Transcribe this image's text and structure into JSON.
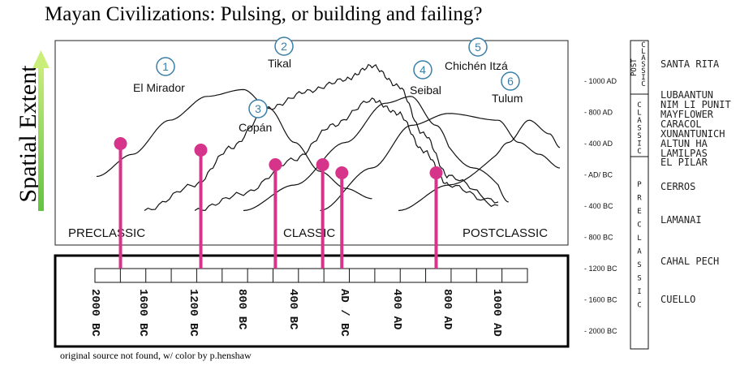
{
  "title": "Mayan Civilizations: Pulsing, or building and failing?",
  "y_axis_label": "Spatial Extent",
  "caption": "original source not found, w/ color by p.henshaw",
  "colors": {
    "marker": "#d6338a",
    "arrow_top": "#c9ee7a",
    "arrow_bottom": "#62c43f",
    "circle": "#3a7fa8",
    "curve": "#111111"
  },
  "chart_data": {
    "type": "line",
    "title": "Mayan Civilizations: Pulsing, or building and failing?",
    "ylabel": "Spatial Extent",
    "xlabel": "",
    "x_ticks": [
      "2000 BC",
      "1600 BC",
      "1200 BC",
      "800 BC",
      "400 BC",
      "AD / BC",
      "400 AD",
      "800 AD",
      "1000 AD"
    ],
    "x_tick_values": [
      -2000,
      -1600,
      -1200,
      -800,
      -400,
      0,
      400,
      800,
      1000
    ],
    "xlim": [
      -2000,
      1600
    ],
    "eras": [
      "PRECLASSIC",
      "CLASSIC",
      "POSTCLASSIC"
    ],
    "series": [
      {
        "name": "El Mirador",
        "number": "1",
        "x": [
          -2000,
          -1700,
          -1400,
          -1100,
          -800,
          -600,
          -400,
          -200,
          0,
          200
        ],
        "y": [
          0.25,
          0.38,
          0.58,
          0.72,
          0.76,
          0.65,
          0.45,
          0.28,
          0.18,
          0.12
        ]
      },
      {
        "name": "Tikal",
        "number": "2",
        "x": [
          -1600,
          -1200,
          -900,
          -600,
          -300,
          0,
          200,
          400,
          600,
          800,
          1000
        ],
        "y": [
          0.05,
          0.2,
          0.42,
          0.65,
          0.75,
          0.82,
          0.9,
          0.78,
          0.5,
          0.25,
          0.1
        ]
      },
      {
        "name": "Copán",
        "number": "3",
        "x": [
          -1200,
          -800,
          -400,
          -100,
          200,
          400,
          600,
          800,
          1000
        ],
        "y": [
          0.05,
          0.15,
          0.35,
          0.55,
          0.7,
          0.62,
          0.4,
          0.2,
          0.08
        ]
      },
      {
        "name": "Seibal",
        "number": "4",
        "x": [
          -800,
          -400,
          0,
          300,
          500,
          700,
          900,
          1100
        ],
        "y": [
          0.05,
          0.2,
          0.45,
          0.68,
          0.72,
          0.55,
          0.3,
          0.1
        ]
      },
      {
        "name": "Chichén Itzá",
        "number": "5",
        "x": [
          -200,
          200,
          500,
          800,
          1000,
          1200,
          1400,
          1600
        ],
        "y": [
          0.05,
          0.3,
          0.55,
          0.62,
          0.58,
          0.45,
          0.38,
          0.3
        ]
      },
      {
        "name": "Tulum",
        "number": "6",
        "x": [
          400,
          800,
          1100,
          1300,
          1500,
          1600
        ],
        "y": [
          0.05,
          0.2,
          0.45,
          0.58,
          0.5,
          0.42
        ]
      }
    ],
    "markers_year": [
      -1800,
      -1150,
      -550,
      -180,
      -30,
      700
    ]
  },
  "chronology": {
    "ticks": [
      "1000 AD",
      "800 AD",
      "400 AD",
      "AD/ BC",
      "400 BC",
      "800 BC",
      "1200 BC",
      "1600 BC",
      "2000 BC"
    ],
    "periods": [
      {
        "label": "POST CLASSIC"
      },
      {
        "label": "CLASSIC"
      },
      {
        "label": "PRECLASSIC"
      }
    ],
    "sites": [
      "SANTA RITA",
      "LUBAANTUN",
      "NIM LI PUNIT",
      "MAYFLOWER",
      "CARACOL",
      "XUNANTUNICH",
      "ALTUN HA",
      "LAMILPAS",
      "EL PILAR",
      "CERROS",
      "LAMANAI",
      "CAHAL PECH",
      "CUELLO"
    ]
  }
}
